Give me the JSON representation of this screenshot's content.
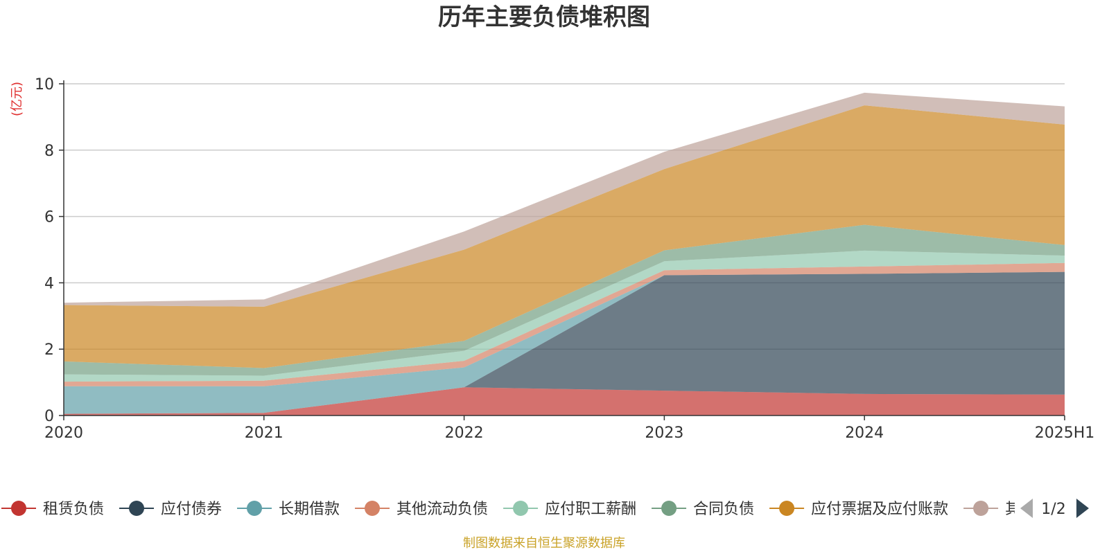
{
  "chart_data": {
    "type": "area",
    "stacked": true,
    "title": "历年主要负债堆积图",
    "unit_label": "(亿元)",
    "source_note": "制图数据来自恒生聚源数据库",
    "categories": [
      "2020",
      "2021",
      "2022",
      "2023",
      "2024",
      "2025H1"
    ],
    "ylim": [
      0,
      10
    ],
    "yticks": [
      0,
      2,
      4,
      6,
      8,
      10
    ],
    "grid": true,
    "legend_position": "bottom",
    "legend_page": "1/2",
    "series": [
      {
        "name": "租赁负债",
        "color": "#c23531",
        "values": [
          0.05,
          0.08,
          0.85,
          0.75,
          0.65,
          0.63
        ]
      },
      {
        "name": "应付债券",
        "color": "#2f4554",
        "values": [
          0.0,
          0.0,
          0.0,
          3.48,
          3.62,
          3.7
        ]
      },
      {
        "name": "长期借款",
        "color": "#61a0a8",
        "values": [
          0.83,
          0.8,
          0.6,
          0.0,
          0.0,
          0.0
        ]
      },
      {
        "name": "其他流动负债",
        "color": "#d48265",
        "values": [
          0.14,
          0.17,
          0.2,
          0.15,
          0.22,
          0.27
        ]
      },
      {
        "name": "应付职工薪酬",
        "color": "#91c7ae",
        "values": [
          0.22,
          0.15,
          0.3,
          0.27,
          0.48,
          0.22
        ]
      },
      {
        "name": "合同负债",
        "color": "#749f83",
        "values": [
          0.39,
          0.23,
          0.3,
          0.33,
          0.78,
          0.32
        ]
      },
      {
        "name": "应付票据及应付账款",
        "color": "#ca8622",
        "values": [
          1.7,
          1.85,
          2.75,
          2.45,
          3.6,
          3.63
        ]
      },
      {
        "name": "其他",
        "color": "#bda29a",
        "values": [
          0.07,
          0.22,
          0.55,
          0.52,
          0.38,
          0.55
        ]
      }
    ]
  }
}
